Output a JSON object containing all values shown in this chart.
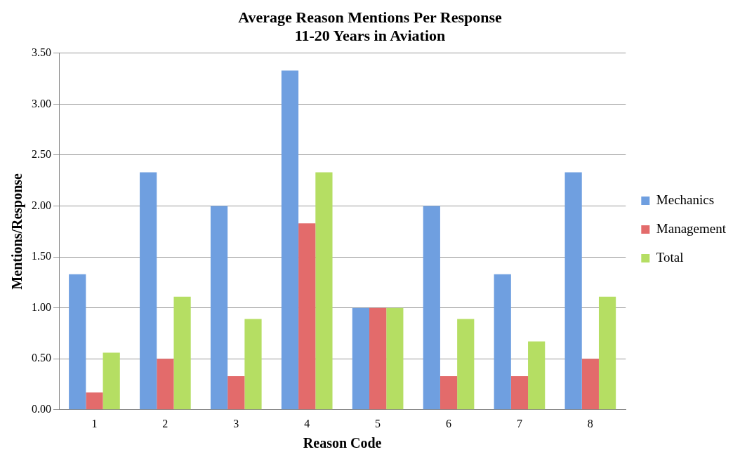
{
  "chart_data": {
    "type": "bar",
    "title": "Average Reason Mentions Per Response\n11-20 Years in Aviation",
    "xlabel": "Reason Code",
    "ylabel": "Mentions/Response",
    "categories": [
      "1",
      "2",
      "3",
      "4",
      "5",
      "6",
      "7",
      "8"
    ],
    "series": [
      {
        "name": "Mechanics",
        "color": "#6f9fe0",
        "values": [
          1.33,
          2.33,
          2.0,
          3.33,
          1.0,
          2.0,
          1.33,
          2.33
        ]
      },
      {
        "name": "Management",
        "color": "#e36b6b",
        "values": [
          0.17,
          0.5,
          0.33,
          1.83,
          1.0,
          0.33,
          0.33,
          0.5
        ]
      },
      {
        "name": "Total",
        "color": "#b5de63",
        "values": [
          0.56,
          1.11,
          0.89,
          2.33,
          1.0,
          0.89,
          0.67,
          1.11
        ]
      }
    ],
    "ylim": [
      0,
      3.5
    ],
    "yticks": [
      {
        "value": 0,
        "label": "0.00"
      },
      {
        "value": 0.5,
        "label": "0.50"
      },
      {
        "value": 1,
        "label": "1.00"
      },
      {
        "value": 1.5,
        "label": "1.50"
      },
      {
        "value": 2,
        "label": "2.00"
      },
      {
        "value": 2.5,
        "label": "2.50"
      },
      {
        "value": 3,
        "label": "3.00"
      },
      {
        "value": 3.5,
        "label": "3.50"
      }
    ],
    "grid": "y",
    "legend": "right"
  }
}
